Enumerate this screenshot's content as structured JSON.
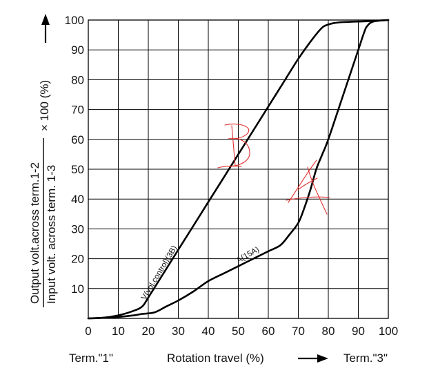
{
  "chart_data": {
    "type": "line",
    "xlabel": "Rotation travel (%)",
    "ylabel_numerator": "Output volt.across term.1-2",
    "ylabel_denominator": "Input volt. across term.  1-3",
    "ylabel_suffix": "× 100 (%)",
    "term_left": "Term.\"1\"",
    "term_right": "Term.\"3\"",
    "xlim": [
      0,
      100
    ],
    "ylim": [
      0,
      100
    ],
    "x_ticks": [
      "0",
      "10",
      "20",
      "30",
      "40",
      "50",
      "60",
      "70",
      "80",
      "90",
      "100"
    ],
    "y_ticks": [
      "10",
      "20",
      "30",
      "40",
      "50",
      "60",
      "70",
      "80",
      "90",
      "100"
    ],
    "grid": true,
    "series": [
      {
        "name": "V(vol.control)(3B)",
        "x": [
          0,
          5,
          10,
          15,
          18,
          20,
          25,
          30,
          35,
          40,
          45,
          50,
          55,
          60,
          65,
          70,
          75,
          78,
          80,
          82,
          85,
          90,
          95,
          100
        ],
        "y": [
          0,
          0.2,
          1,
          2.5,
          4,
          7,
          15,
          23,
          31,
          39,
          47,
          55,
          63,
          71,
          79,
          87,
          94,
          97.5,
          98.5,
          99,
          99.3,
          99.5,
          99.7,
          100
        ]
      },
      {
        "name": "A(15A)",
        "x": [
          0,
          5,
          10,
          15,
          18,
          22,
          26,
          30,
          35,
          40,
          45,
          50,
          55,
          60,
          64,
          67,
          70,
          72,
          74,
          76,
          78,
          80,
          85,
          88,
          90,
          92,
          93,
          95,
          100
        ],
        "y": [
          0,
          0.2,
          0.5,
          1,
          1.5,
          2,
          4,
          6,
          9,
          12.5,
          15,
          17.5,
          20,
          22.5,
          24.5,
          28,
          32,
          37,
          43,
          50,
          55,
          60,
          75,
          84,
          90,
          96,
          98,
          99.5,
          100
        ]
      }
    ],
    "annotations": [
      {
        "text": "V(vol.control)(3B)",
        "x": 19,
        "y": 6,
        "angle_deg": -59
      },
      {
        "text": "A(15A)",
        "x": 50,
        "y": 18.5,
        "angle_deg": -30
      }
    ],
    "handwritten_marks": [
      "B",
      "A"
    ],
    "colors": {
      "curve": "#000000",
      "grid": "#000000",
      "handwriting": "#e03030"
    }
  }
}
